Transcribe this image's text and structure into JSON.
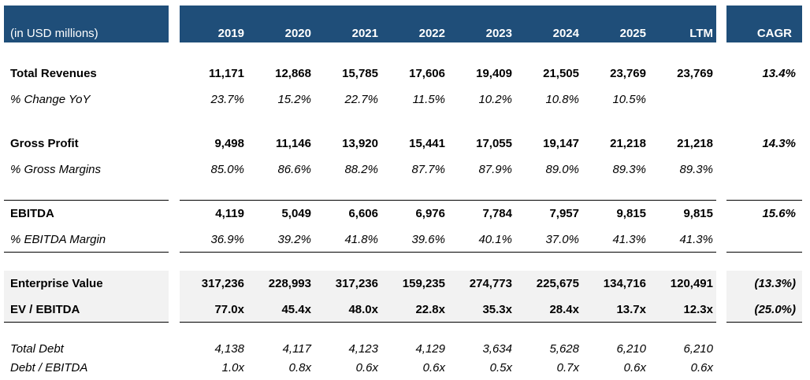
{
  "header": {
    "unit_label": "(in USD millions)",
    "years": [
      "2019",
      "2020",
      "2021",
      "2022",
      "2023",
      "2024",
      "2025",
      "LTM"
    ],
    "cagr_label": "CAGR"
  },
  "rows": {
    "revenues": {
      "label": "Total Revenues",
      "values": [
        "11,171",
        "12,868",
        "15,785",
        "17,606",
        "19,409",
        "21,505",
        "23,769",
        "23,769"
      ],
      "cagr": "13.4%"
    },
    "yoy": {
      "label": "% Change YoY",
      "values": [
        "23.7%",
        "15.2%",
        "22.7%",
        "11.5%",
        "10.2%",
        "10.8%",
        "10.5%",
        ""
      ]
    },
    "gross_profit": {
      "label": "Gross Profit",
      "values": [
        "9,498",
        "11,146",
        "13,920",
        "15,441",
        "17,055",
        "19,147",
        "21,218",
        "21,218"
      ],
      "cagr": "14.3%"
    },
    "gross_margin": {
      "label": "% Gross Margins",
      "values": [
        "85.0%",
        "86.6%",
        "88.2%",
        "87.7%",
        "87.9%",
        "89.0%",
        "89.3%",
        "89.3%"
      ]
    },
    "ebitda": {
      "label": "EBITDA",
      "values": [
        "4,119",
        "5,049",
        "6,606",
        "6,976",
        "7,784",
        "7,957",
        "9,815",
        "9,815"
      ],
      "cagr": "15.6%"
    },
    "ebitda_margin": {
      "label": "% EBITDA Margin",
      "values": [
        "36.9%",
        "39.2%",
        "41.8%",
        "39.6%",
        "40.1%",
        "37.0%",
        "41.3%",
        "41.3%"
      ]
    },
    "ev": {
      "label": "Enterprise Value",
      "values": [
        "317,236",
        "228,993",
        "317,236",
        "159,235",
        "274,773",
        "225,675",
        "134,716",
        "120,491"
      ],
      "cagr": "(13.3%)"
    },
    "ev_ebitda": {
      "label": "EV / EBITDA",
      "values": [
        "77.0x",
        "45.4x",
        "48.0x",
        "22.8x",
        "35.3x",
        "28.4x",
        "13.7x",
        "12.3x"
      ],
      "cagr": "(25.0%)"
    },
    "total_debt": {
      "label": "Total Debt",
      "values": [
        "4,138",
        "4,117",
        "4,123",
        "4,129",
        "3,634",
        "5,628",
        "6,210",
        "6,210"
      ]
    },
    "debt_ebitda": {
      "label": "Debt / EBITDA",
      "values": [
        "1.0x",
        "0.8x",
        "0.6x",
        "0.6x",
        "0.5x",
        "0.7x",
        "0.6x",
        "0.6x"
      ]
    }
  },
  "colors": {
    "header_bg": "#1f4e79",
    "header_text": "#ffffff",
    "band_bg": "#f2f2f2"
  }
}
